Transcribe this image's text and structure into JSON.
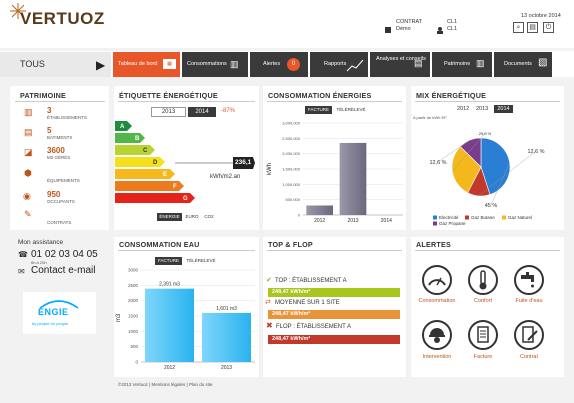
{
  "header": {
    "logo": "VERTUOZ",
    "contract_label": "CONTRAT",
    "contract_value": "Démo",
    "user_line1": "CL1",
    "user_line2": "CL1",
    "date": "13 octobre 2014"
  },
  "nav": {
    "tous": "TOUS",
    "tabs": [
      "Tableau de bord",
      "Consommations",
      "Alertes",
      "Rapports",
      "Analyses et conseils",
      "Patrimoine",
      "Documents"
    ],
    "alert_count": "0"
  },
  "patrimoine": {
    "title": "PATRIMOINE",
    "items": [
      {
        "value": "3",
        "label": "ÉTABLISSEMENTS"
      },
      {
        "value": "5",
        "label": "BATIMENTS"
      },
      {
        "value": "3600",
        "label": "M2 GÉRÉS"
      },
      {
        "value": "",
        "label": "ÉQUIPEMENTS"
      },
      {
        "value": "950",
        "label": "OCCUPANTS"
      },
      {
        "value": "",
        "label": "CONTRATS"
      }
    ]
  },
  "etiquette": {
    "title": "ÉTIQUETTE ÉNERGÉTIQUE",
    "year1": "2013",
    "year2": "2014",
    "delta": "-87%",
    "value": "236,1",
    "unit": "kWh/m2.an",
    "letters": [
      "A",
      "B",
      "C",
      "D",
      "E",
      "F",
      "G"
    ],
    "tabs": [
      "ÉNERGIE",
      "EURO",
      "CO2"
    ]
  },
  "conso_energies": {
    "title": "CONSOMMATION ÉNERGIES",
    "tabs": [
      "FACTURE",
      "TÉLÉRELEVÉ"
    ],
    "ylabel": "kWh"
  },
  "mix": {
    "title": "MIX ÉNERGÉTIQUE",
    "years": [
      "2012",
      "2013",
      "2014"
    ],
    "subtitle": "A partir de kWh EF",
    "legend": [
      "Electricité",
      "Gaz Butane",
      "Gaz Naturel",
      "Gaz Propane"
    ]
  },
  "assistance": {
    "title": "Mon assistance",
    "phone": "01 02 03 04 05",
    "hours": "6h à 20h",
    "email": "Contact e-mail",
    "brand": "ENGIE",
    "brand_tag": "by people for people"
  },
  "conso_eau": {
    "title": "CONSOMMATION EAU",
    "tabs": [
      "FACTURE",
      "TÉLÉRELEVÉ"
    ],
    "ylabel": "m3"
  },
  "topflop": {
    "title": "TOP & FLOP",
    "top_label": "TOP : ÉTABLISSEMENT A",
    "top_value": "248,47 kWh/m²",
    "mid_label": "MOYENNE SUR 1 SITE",
    "mid_value": "248,47 kWh/m²",
    "flop_label": "FLOP : ÉTABLISSEMENT A",
    "flop_value": "248,47 kWh/m²"
  },
  "alertes": {
    "title": "ALERTES",
    "items": [
      "Consommation",
      "Confort",
      "Fuite d'eau",
      "Intervention",
      "Facture",
      "Contrat"
    ]
  },
  "footer": {
    "text": "©2013 Vertuoz | Mentions légales | Plan du site"
  },
  "chart_data": [
    {
      "type": "bar",
      "title": "CONSOMMATION ÉNERGIES",
      "categories": [
        "2012",
        "2013",
        "2014"
      ],
      "values": [
        310000,
        2350000,
        0
      ],
      "ylabel": "kWh",
      "yticks": [
        "0",
        "500,000",
        "1,000,000",
        "1,500,000",
        "2,000,000",
        "2,500,000",
        "3,000,000"
      ],
      "ylim": [
        0,
        3000000
      ],
      "color": "#7e7a8f"
    },
    {
      "type": "pie",
      "title": "MIX ÉNERGÉTIQUE",
      "labels": [
        "Electricité",
        "Gaz Butane",
        "Gaz Naturel",
        "Gaz Propane"
      ],
      "values": [
        45,
        12.6,
        29.8,
        12.6
      ],
      "value_labels": [
        "45 %",
        "12,6 %",
        "29,8 %",
        "12,6 %"
      ],
      "colors": [
        "#2a7fd4",
        "#c0392b",
        "#f4b81c",
        "#7a3d8c"
      ]
    },
    {
      "type": "bar",
      "title": "CONSOMMATION EAU",
      "categories": [
        "2012",
        "2013"
      ],
      "values": [
        2391,
        1601
      ],
      "value_labels": [
        "2,391 m3",
        "1,601 m3"
      ],
      "ylabel": "m3",
      "yticks": [
        "0",
        "500",
        "1000",
        "1500",
        "2000",
        "2500",
        "3000"
      ],
      "ylim": [
        0,
        3000
      ],
      "color": "#4fc3f7"
    }
  ]
}
